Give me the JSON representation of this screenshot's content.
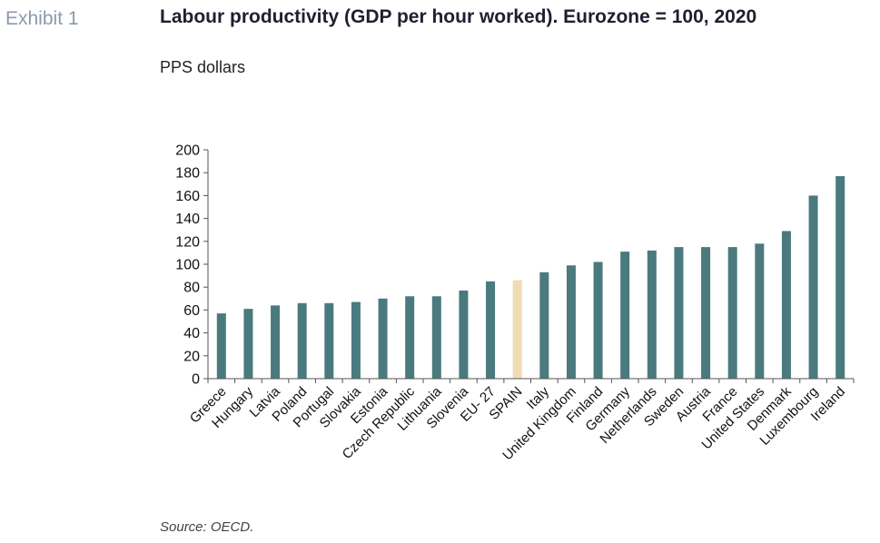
{
  "header": {
    "exhibit_label": "Exhibit 1",
    "title": "Labour productivity (GDP per hour worked). Eurozone = 100, 2020"
  },
  "unit_label": "PPS dollars",
  "source": "Source: OECD.",
  "colors": {
    "bar": "#4a7a7e",
    "highlight": "#f0dcb4",
    "axis": "#555555"
  },
  "chart_data": {
    "type": "bar",
    "categories": [
      "Greece",
      "Hungary",
      "Latvia",
      "Poland",
      "Portugal",
      "Slovakia",
      "Estonia",
      "Czech Republic",
      "Lithuania",
      "Slovenia",
      "EU- 27",
      "SPAIN",
      "Italy",
      "United Kingdom",
      "Finland",
      "Germany",
      "Netherlands",
      "Sweden",
      "Austria",
      "France",
      "United States",
      "Denmark",
      "Luxembourg",
      "Ireland"
    ],
    "values": [
      57,
      61,
      64,
      66,
      66,
      67,
      70,
      72,
      72,
      77,
      85,
      86,
      93,
      99,
      102,
      111,
      112,
      115,
      115,
      115,
      118,
      129,
      160,
      177
    ],
    "highlight_category": "SPAIN",
    "title": "Labour productivity (GDP per hour worked). Eurozone = 100, 2020",
    "ylabel": "PPS dollars",
    "xlabel": "",
    "ylim": [
      0,
      200
    ],
    "yticks": [
      0,
      20,
      40,
      60,
      80,
      100,
      120,
      140,
      160,
      180,
      200
    ],
    "grid": false,
    "legend": "none"
  }
}
